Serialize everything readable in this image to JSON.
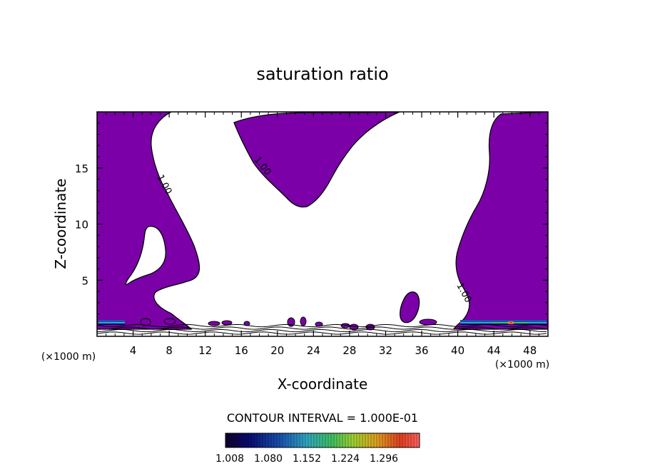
{
  "chart_data": {
    "type": "contour",
    "title": "saturation ratio",
    "xlabel": "X-coordinate",
    "ylabel": "Z-coordinate",
    "x_unit": "(×1000 m)",
    "x_unit_right": "(×1000 m)",
    "xlim": [
      0,
      50
    ],
    "ylim": [
      0,
      20
    ],
    "x_ticks": [
      "4",
      "8",
      "12",
      "16",
      "20",
      "24",
      "28",
      "32",
      "36",
      "40",
      "44",
      "48"
    ],
    "y_ticks": [
      "5",
      "10",
      "15"
    ],
    "contour_labels": [
      "1.00",
      "1.00",
      "1.00"
    ],
    "fill_color": "#7b00a8",
    "contour_interval_text": "CONTOUR INTERVAL = 1.000E-01",
    "colorbar": {
      "tick_labels": [
        "1.008",
        "1.080",
        "1.152",
        "1.224",
        "1.296"
      ],
      "colors": [
        "#10002a",
        "#0a0a70",
        "#1850b0",
        "#30a8c0",
        "#40c060",
        "#a0d030",
        "#e0a020",
        "#e04020",
        "#ff6060"
      ]
    }
  }
}
